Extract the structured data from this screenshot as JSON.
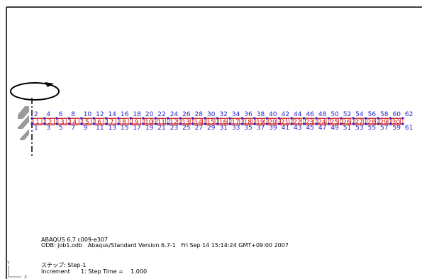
{
  "viewport": {
    "model_info": {
      "line1": "ABAQUS 6.7 c009-e307",
      "line2": "ODB: job1.odb   Abaqus/Standard Version 6.7-1   Fri Sep 14 15:14:24 GMT+09:00 2007"
    },
    "step_info": {
      "step_line": "ステップ: Step-1",
      "increment_line": "Increment      1: Step Time =    1.000"
    },
    "triad": {
      "y_label": "Y",
      "x_label": "X"
    },
    "colors": {
      "node_labels": "#2222cc",
      "element_labels": "#cc1111",
      "mesh_lines": "#cc1111",
      "axis": "#000000",
      "support_hatch": "#888888"
    }
  },
  "mesh": {
    "node_count": 62,
    "element_count": 30,
    "top_node_labels": [
      "2",
      "4",
      "6",
      "8",
      "10",
      "12",
      "14",
      "16",
      "18",
      "20",
      "22",
      "24",
      "26",
      "28",
      "30",
      "32",
      "34",
      "36",
      "38",
      "40",
      "42",
      "44",
      "46",
      "48",
      "50",
      "52",
      "54",
      "56",
      "58",
      "60",
      "62"
    ],
    "bottom_node_labels": [
      "1",
      "3",
      "5",
      "7",
      "9",
      "11",
      "13",
      "15",
      "17",
      "19",
      "21",
      "23",
      "25",
      "27",
      "29",
      "31",
      "33",
      "35",
      "37",
      "39",
      "41",
      "43",
      "45",
      "47",
      "49",
      "51",
      "53",
      "55",
      "57",
      "59",
      "61"
    ],
    "element_labels": [
      "1",
      "2",
      "3",
      "4",
      "5",
      "6",
      "7",
      "8",
      "9",
      "10",
      "11",
      "12",
      "13",
      "14",
      "15",
      "16",
      "17",
      "18",
      "19",
      "20",
      "21",
      "22",
      "23",
      "24",
      "25",
      "26",
      "27",
      "28",
      "29",
      "30"
    ]
  }
}
